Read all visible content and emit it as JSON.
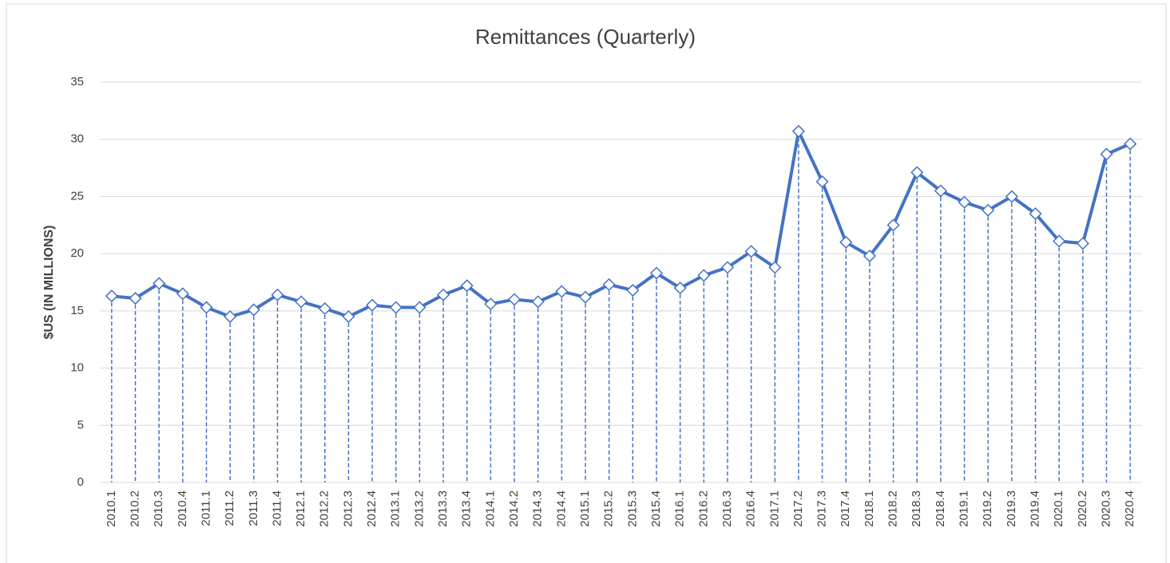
{
  "chart_data": {
    "type": "line",
    "title": "Remittances (Quarterly)",
    "y_label": "$US (IN MILLIONS)",
    "categories": [
      "2010.1",
      "2010.2",
      "2010.3",
      "2010.4",
      "2011.1",
      "2011.2",
      "2011.3",
      "2011.4",
      "2012.1",
      "2012.2",
      "2012.3",
      "2012.4",
      "2013.1",
      "2013.2",
      "2013.3",
      "2013.4",
      "2014.1",
      "2014.2",
      "2014.3",
      "2014.4",
      "2015.1",
      "2015.2",
      "2015.3",
      "2015.4",
      "2016.1",
      "2016.2",
      "2016.3",
      "2016.4",
      "2017.1",
      "2017.2",
      "2017.3",
      "2017.4",
      "2018.1",
      "2018.2",
      "2018.3",
      "2018.4",
      "2019.1",
      "2019.2",
      "2019.3",
      "2019.4",
      "2020.1",
      "2020.2",
      "2020.3",
      "2020.4"
    ],
    "values": [
      16.3,
      16.1,
      17.4,
      16.5,
      15.3,
      14.5,
      15.1,
      16.4,
      15.8,
      15.2,
      14.5,
      15.5,
      15.3,
      15.3,
      16.4,
      17.2,
      15.6,
      16.0,
      15.8,
      16.7,
      16.2,
      17.3,
      16.8,
      18.3,
      17.0,
      18.1,
      18.8,
      20.2,
      18.8,
      30.7,
      26.3,
      21.0,
      19.8,
      22.5,
      27.1,
      25.5,
      24.5,
      23.8,
      25.0,
      23.5,
      21.1,
      20.9,
      28.7,
      29.6
    ],
    "color": "#4472c4",
    "ylim": [
      0,
      35
    ],
    "yticks": [
      0,
      5,
      10,
      15,
      20,
      25,
      30,
      35
    ],
    "grid": true,
    "drop_lines": true
  }
}
